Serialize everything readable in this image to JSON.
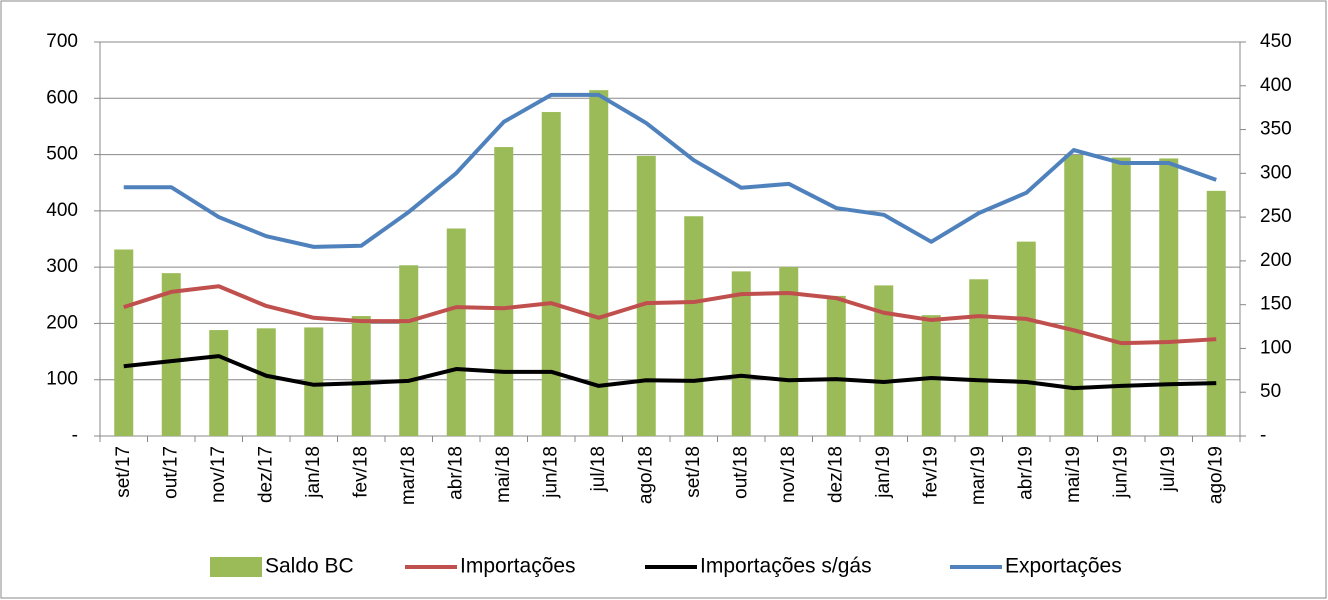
{
  "chart_data": {
    "type": "bar_line",
    "categories": [
      "set/17",
      "out/17",
      "nov/17",
      "dez/17",
      "jan/18",
      "fev/18",
      "mar/18",
      "abr/18",
      "mai/18",
      "jun/18",
      "jul/18",
      "ago/18",
      "set/18",
      "out/18",
      "nov/18",
      "dez/18",
      "jan/19",
      "fev/19",
      "mar/19",
      "abr/19",
      "mai/19",
      "jun/19",
      "jul/19",
      "ago/19"
    ],
    "series": [
      {
        "name": "Saldo BC",
        "kind": "bar",
        "axis": "y2",
        "color": "#9bbb59",
        "values": [
          213,
          186,
          121,
          123,
          124,
          137,
          195,
          237,
          330,
          370,
          395,
          320,
          251,
          188,
          193,
          160,
          172,
          138,
          179,
          222,
          321,
          318,
          317,
          280
        ]
      },
      {
        "name": "Importações",
        "kind": "line",
        "color": "#c0504d",
        "values": [
          229,
          256,
          266,
          231,
          210,
          204,
          204,
          229,
          227,
          236,
          210,
          236,
          238,
          252,
          254,
          245,
          219,
          206,
          213,
          208,
          188,
          165,
          167,
          172
        ]
      },
      {
        "name": "Importações s/gás",
        "kind": "line",
        "color": "#000000",
        "values": [
          124,
          133,
          142,
          107,
          91,
          94,
          98,
          119,
          114,
          114,
          89,
          99,
          98,
          107,
          99,
          101,
          96,
          103,
          99,
          96,
          85,
          89,
          92,
          94
        ]
      },
      {
        "name": "Exportações",
        "kind": "line",
        "color": "#4f81bd",
        "values": [
          442,
          442,
          389,
          355,
          336,
          338,
          398,
          467,
          558,
          606,
          606,
          556,
          490,
          441,
          448,
          405,
          393,
          345,
          396,
          432,
          508,
          485,
          485,
          455
        ]
      }
    ],
    "ylim": [
      0,
      700
    ],
    "yticks": [
      {
        "value": 0,
        "label": "-"
      },
      100,
      200,
      300,
      400,
      500,
      600,
      700
    ],
    "y2lim": [
      0,
      450
    ],
    "y2ticks": [
      {
        "value": 0,
        "label": "-"
      },
      50,
      100,
      150,
      200,
      250,
      300,
      350,
      400,
      450
    ],
    "grid": true,
    "legend": "bottom"
  }
}
